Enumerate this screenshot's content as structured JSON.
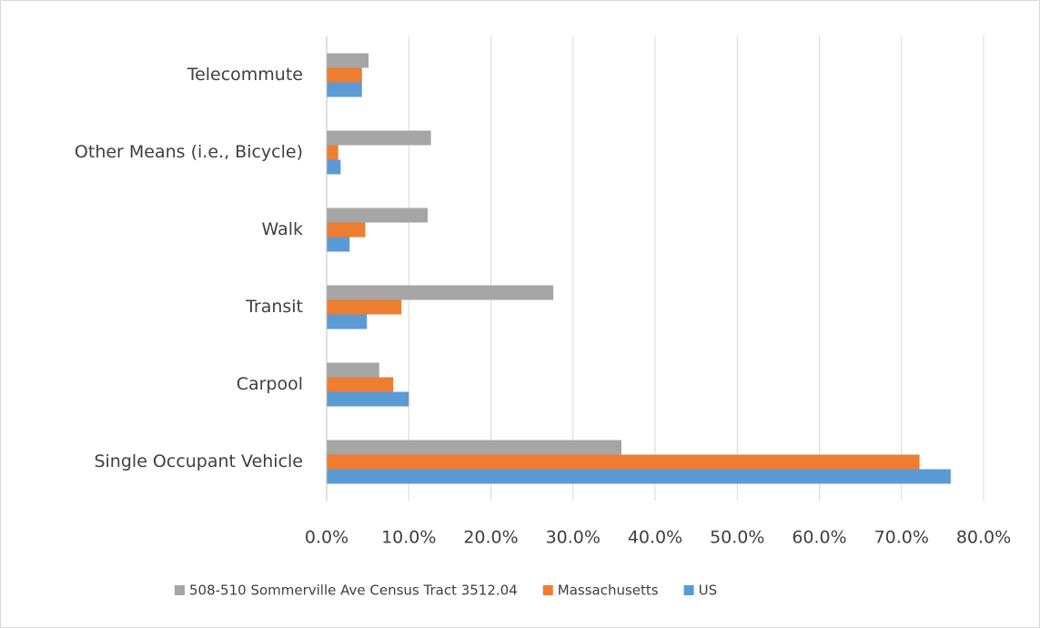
{
  "chart_data": {
    "type": "bar",
    "orientation": "horizontal",
    "categories": [
      "Single Occupant Vehicle",
      "Carpool",
      "Transit",
      "Walk",
      "Other Means (i.e., Bicycle)",
      "Telecommute"
    ],
    "series": [
      {
        "name": "508-510 Sommerville Ave Census Tract 3512.04",
        "color": "#a5a5a5",
        "values": [
          35.9,
          6.4,
          27.6,
          12.3,
          12.7,
          5.1
        ]
      },
      {
        "name": "Massachusetts",
        "color": "#ed7d31",
        "values": [
          72.2,
          8.1,
          9.1,
          4.7,
          1.4,
          4.3
        ]
      },
      {
        "name": "US",
        "color": "#5b9bd5",
        "values": [
          76.0,
          10.0,
          4.9,
          2.8,
          1.7,
          4.3
        ]
      }
    ],
    "xlim": [
      0,
      80
    ],
    "xticks": [
      {
        "value": 0,
        "label": "0.0%"
      },
      {
        "value": 10,
        "label": "10.0%"
      },
      {
        "value": 20,
        "label": "20.0%"
      },
      {
        "value": 30,
        "label": "30.0%"
      },
      {
        "value": 40,
        "label": "40.0%"
      },
      {
        "value": 50,
        "label": "50.0%"
      },
      {
        "value": 60,
        "label": "60.0%"
      },
      {
        "value": 70,
        "label": "70.0%"
      },
      {
        "value": 80,
        "label": "80.0%"
      }
    ],
    "grid": true,
    "legend": "bottom"
  }
}
